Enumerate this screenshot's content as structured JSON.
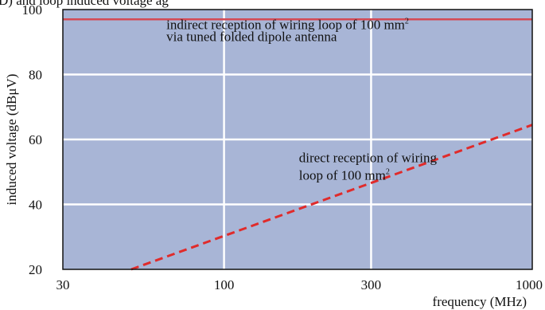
{
  "chart_data": {
    "type": "line",
    "title": "",
    "xlabel": "frequency  (MHz)",
    "ylabel": "induced voltage (dBμV)",
    "xscale": "log",
    "xlim": [
      30,
      1000
    ],
    "ylim": [
      20,
      100
    ],
    "xticks": [
      30,
      100,
      300,
      1000
    ],
    "xtick_labels": [
      "30",
      "100",
      "300",
      "1000"
    ],
    "yticks": [
      20,
      40,
      60,
      80,
      100
    ],
    "ytick_labels": [
      "20",
      "40",
      "60",
      "80",
      "100"
    ],
    "grid": true,
    "plot_background": "#a8b5d6",
    "series": [
      {
        "style": "solid",
        "color": "#d44a55",
        "x": [
          30,
          1000
        ],
        "y": [
          97,
          97
        ]
      },
      {
        "style": "dashed",
        "color": "#e02b2b",
        "x": [
          50,
          1000
        ],
        "y": [
          20,
          64.5
        ]
      }
    ],
    "annotations": [
      {
        "lines": [
          "indirect reception of wiring loop of 100 mm",
          "via tuned folded dipole antenna"
        ],
        "superscript": "2",
        "x": 65,
        "y": 94
      },
      {
        "lines": [
          "direct reception of wiring",
          "loop of 100 mm"
        ],
        "superscript": "2",
        "x": 175,
        "y": 53
      }
    ]
  },
  "header_fragment": "D) and loop induced voltage ag"
}
